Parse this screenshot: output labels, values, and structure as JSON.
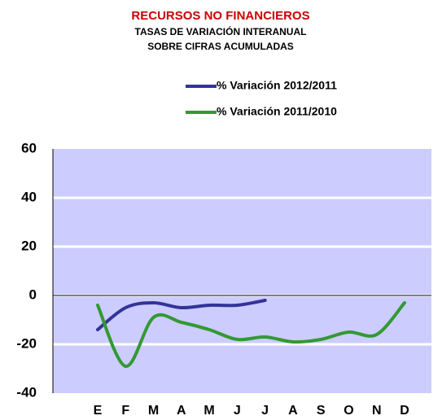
{
  "chart_data": {
    "type": "line",
    "title": "RECURSOS NO FINANCIEROS",
    "subtitle": [
      "TASAS DE VARIACIÓN INTERANUAL",
      "SOBRE CIFRAS ACUMULADAS"
    ],
    "categories": [
      "E",
      "F",
      "M",
      "A",
      "M",
      "J",
      "J",
      "A",
      "S",
      "O",
      "N",
      "D"
    ],
    "series": [
      {
        "name": "% Variación 2012/2011",
        "color": "#333399",
        "values": [
          -14,
          -5,
          -3,
          -5,
          -4,
          -4,
          -2,
          null,
          null,
          null,
          null,
          null
        ]
      },
      {
        "name": "% Variación 2011/2010",
        "color": "#339933",
        "values": [
          -4,
          -29,
          -9,
          -11,
          -14,
          -18,
          -17,
          -19,
          -18,
          -15,
          -16,
          -3
        ]
      }
    ],
    "ylim": [
      -40,
      60
    ],
    "yticks": [
      -40,
      -20,
      0,
      20,
      40,
      60
    ],
    "grid": true,
    "smooth": true,
    "background": "#ccccff"
  }
}
